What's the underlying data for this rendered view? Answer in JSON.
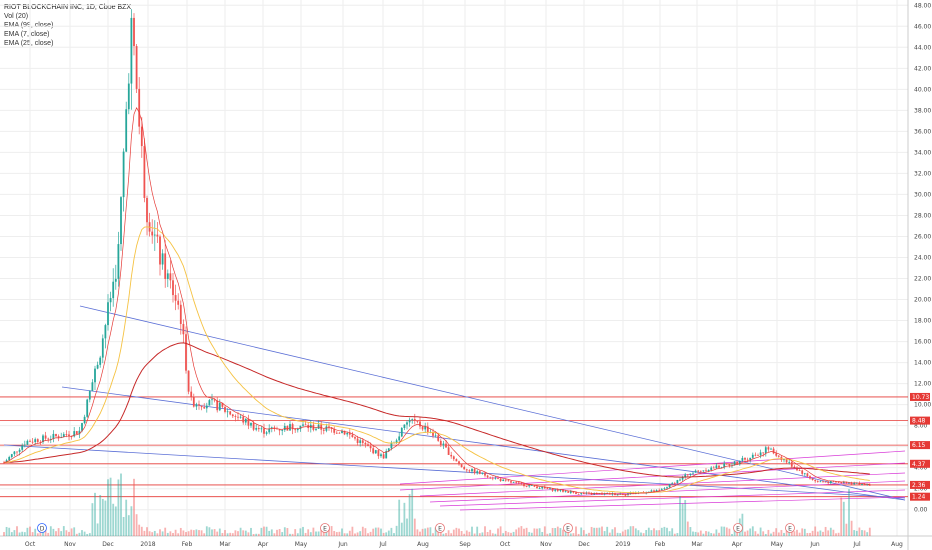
{
  "header": {
    "title": "RIOT BLOCKCHAIN INC, 1D, Cboe BZX",
    "indicators": [
      "Vol (20)",
      "EMA (99, close)",
      "EMA (7, close)",
      "EMA (25, close)"
    ]
  },
  "colors": {
    "up": "#26a69a",
    "down": "#ef5350",
    "ema99": "#c62828",
    "ema7": "#e53935",
    "ema25": "#f5c242",
    "trend_blue": "#5b6fd6",
    "trend_magenta": "#d83bd8",
    "hline_red": "#e53935",
    "grid": "#eeeeee"
  },
  "chart_data": {
    "type": "candlestick",
    "symbol": "RIOT BLOCKCHAIN INC",
    "interval": "1D",
    "exchange": "Cboe BZX",
    "x_ticks": [
      "Oct",
      "Nov",
      "Dec",
      "2018",
      "Feb",
      "Mar",
      "Apr",
      "May",
      "Jun",
      "Jul",
      "Aug",
      "Sep",
      "Oct",
      "Nov",
      "Dec",
      "2019",
      "Feb",
      "Mar",
      "Apr",
      "May",
      "Jun",
      "Jul",
      "Aug"
    ],
    "y_ticks": [
      "0.00",
      "2.00",
      "4.00",
      "6.00",
      "8.00",
      "10.00",
      "12.00",
      "14.00",
      "16.00",
      "18.00",
      "20.00",
      "22.00",
      "24.00",
      "26.00",
      "28.00",
      "30.00",
      "32.00",
      "34.00",
      "36.00",
      "38.00",
      "40.00",
      "42.00",
      "44.00",
      "46.00",
      "48.00"
    ],
    "ylim": [
      -2.5,
      48.5
    ],
    "price_key_points": [
      [
        "Oct",
        4.5
      ],
      [
        "Oct",
        6.5
      ],
      [
        "Nov",
        7.0
      ],
      [
        "Nov",
        7.5
      ],
      [
        "Dec",
        15.0
      ],
      [
        "Dec",
        24.0
      ],
      [
        "Dec",
        46.2
      ],
      [
        "2018",
        29.0
      ],
      [
        "2018",
        24.0
      ],
      [
        "Feb",
        19.0
      ],
      [
        "Feb",
        10.3
      ],
      [
        "Mar",
        10.0
      ],
      [
        "Apr",
        7.5
      ],
      [
        "May",
        8.0
      ],
      [
        "Jun",
        7.5
      ],
      [
        "Jul",
        5.0
      ],
      [
        "Jul",
        8.6
      ],
      [
        "Aug",
        7.5
      ],
      [
        "Sep",
        4.0
      ],
      [
        "Oct",
        2.7
      ],
      [
        "Nov",
        2.0
      ],
      [
        "Dec",
        1.5
      ],
      [
        "2019",
        1.5
      ],
      [
        "Feb",
        1.8
      ],
      [
        "Mar",
        3.5
      ],
      [
        "Apr",
        4.5
      ],
      [
        "May",
        5.8
      ],
      [
        "Jun",
        2.7
      ],
      [
        "Jul",
        2.4
      ]
    ],
    "horizontal_levels": [
      10.73,
      8.48,
      6.15,
      4.37,
      2.36,
      1.24
    ],
    "price_tags": [
      "10.73",
      "8.48",
      "6.15",
      "4.37",
      "2.36",
      "1.24"
    ],
    "event_markers": [
      {
        "label": "D",
        "x": "Oct"
      },
      {
        "label": "E",
        "x": "May"
      },
      {
        "label": "E",
        "x": "Aug"
      },
      {
        "label": "E",
        "x": "Nov"
      },
      {
        "label": "E",
        "x": "Apr"
      },
      {
        "label": "E",
        "x": "May"
      }
    ],
    "series": [
      {
        "name": "EMA (99, close)",
        "type": "line"
      },
      {
        "name": "EMA (7, close)",
        "type": "line"
      },
      {
        "name": "EMA (25, close)",
        "type": "line"
      },
      {
        "name": "Vol (20)",
        "type": "bar"
      }
    ]
  }
}
